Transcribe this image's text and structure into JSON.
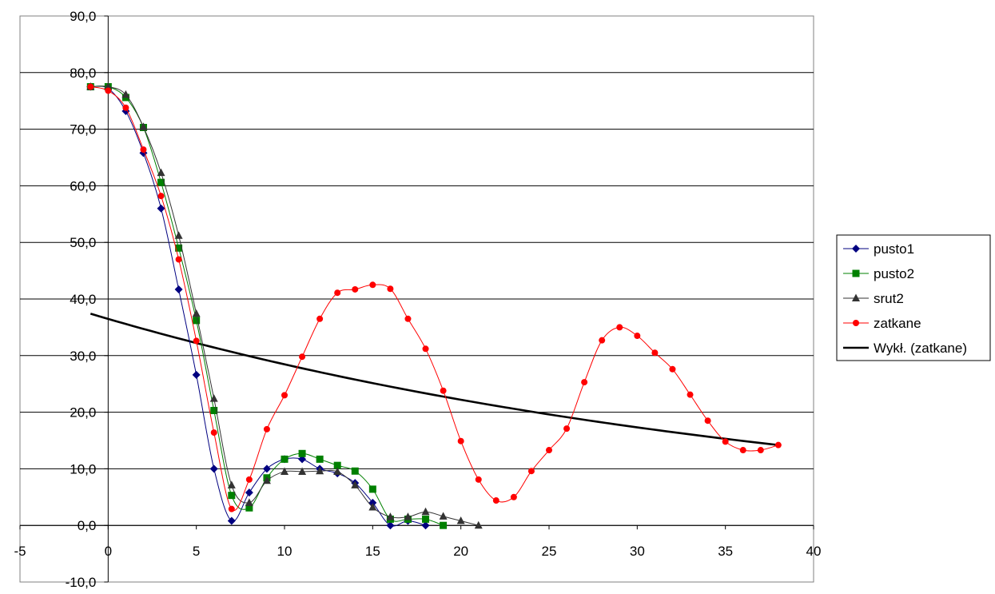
{
  "chart_data": {
    "type": "scatter",
    "title": "",
    "xlabel": "",
    "ylabel": "",
    "xlim": [
      -5,
      40
    ],
    "ylim": [
      -10,
      90
    ],
    "x_ticks": [
      -5,
      0,
      5,
      10,
      15,
      20,
      25,
      30,
      35,
      40
    ],
    "x_tick_labels": [
      "-5",
      "0",
      "5",
      "10",
      "15",
      "20",
      "25",
      "30",
      "35",
      "40"
    ],
    "y_ticks": [
      -10,
      0,
      10,
      20,
      30,
      40,
      50,
      60,
      70,
      80,
      90
    ],
    "y_tick_labels": [
      "-10,0",
      "0,0",
      "10,0",
      "20,0",
      "30,0",
      "40,0",
      "50,0",
      "60,0",
      "70,0",
      "80,0",
      "90,0"
    ],
    "grid": "horizontal",
    "legend_position": "right",
    "series": [
      {
        "name": "pusto1",
        "color": "#000080",
        "marker": "diamond",
        "smooth": true,
        "x": [
          -1,
          0,
          1,
          2,
          3,
          4,
          5,
          6,
          7,
          8,
          9,
          10,
          11,
          12,
          13,
          14,
          15,
          16,
          17,
          18
        ],
        "y": [
          77.5,
          77.2,
          73.2,
          65.8,
          56.0,
          41.7,
          26.6,
          10.0,
          0.8,
          5.8,
          10.0,
          11.7,
          11.7,
          10.0,
          9.2,
          7.5,
          4.0,
          0.0,
          0.8,
          0.0
        ]
      },
      {
        "name": "pusto2",
        "color": "#008000",
        "marker": "square",
        "smooth": true,
        "x": [
          -1,
          0,
          1,
          2,
          3,
          4,
          5,
          6,
          7,
          8,
          9,
          10,
          11,
          12,
          13,
          14,
          15,
          16,
          17,
          18,
          19
        ],
        "y": [
          77.5,
          77.5,
          75.6,
          70.3,
          60.6,
          49.0,
          36.2,
          20.3,
          5.3,
          3.1,
          8.4,
          11.7,
          12.7,
          11.7,
          10.6,
          9.6,
          6.4,
          1.1,
          1.1,
          1.1,
          0.0
        ]
      },
      {
        "name": "srut2",
        "color": "#333333",
        "marker": "triangle",
        "smooth": true,
        "x": [
          -1,
          0,
          1,
          2,
          3,
          4,
          5,
          6,
          7,
          8,
          9,
          10,
          11,
          12,
          13,
          14,
          15,
          16,
          17,
          18,
          19,
          20,
          21
        ],
        "y": [
          77.5,
          77.5,
          76.1,
          70.4,
          62.3,
          51.2,
          37.4,
          22.4,
          7.1,
          4.0,
          7.9,
          9.5,
          9.5,
          9.6,
          9.5,
          7.1,
          3.2,
          1.5,
          1.5,
          2.4,
          1.6,
          0.8,
          0.0
        ]
      },
      {
        "name": "zatkane",
        "color": "#ff0000",
        "marker": "circle",
        "smooth": true,
        "x": [
          -1,
          0,
          1,
          2,
          3,
          4,
          5,
          6,
          7,
          8,
          9,
          10,
          11,
          12,
          13,
          14,
          15,
          16,
          17,
          18,
          19,
          20,
          21,
          22,
          23,
          24,
          25,
          26,
          27,
          28,
          29,
          30,
          31,
          32,
          33,
          34,
          35,
          36,
          37,
          38
        ],
        "y": [
          77.5,
          76.8,
          73.8,
          66.4,
          58.2,
          47.0,
          32.6,
          16.4,
          2.9,
          8.1,
          17.0,
          23.0,
          29.8,
          36.5,
          41.1,
          41.7,
          42.5,
          41.8,
          36.5,
          31.2,
          23.8,
          14.9,
          8.1,
          4.4,
          5.0,
          9.6,
          13.3,
          17.1,
          25.3,
          32.7,
          35.0,
          33.5,
          30.5,
          27.6,
          23.1,
          18.5,
          14.8,
          13.3,
          13.3,
          14.2
        ]
      }
    ],
    "trendline": {
      "name": "Wykł. (zatkane)",
      "type": "exponential",
      "color": "#000000",
      "x_range": [
        -1,
        38
      ],
      "y_start": 37.4,
      "y_end": 14.2
    }
  }
}
